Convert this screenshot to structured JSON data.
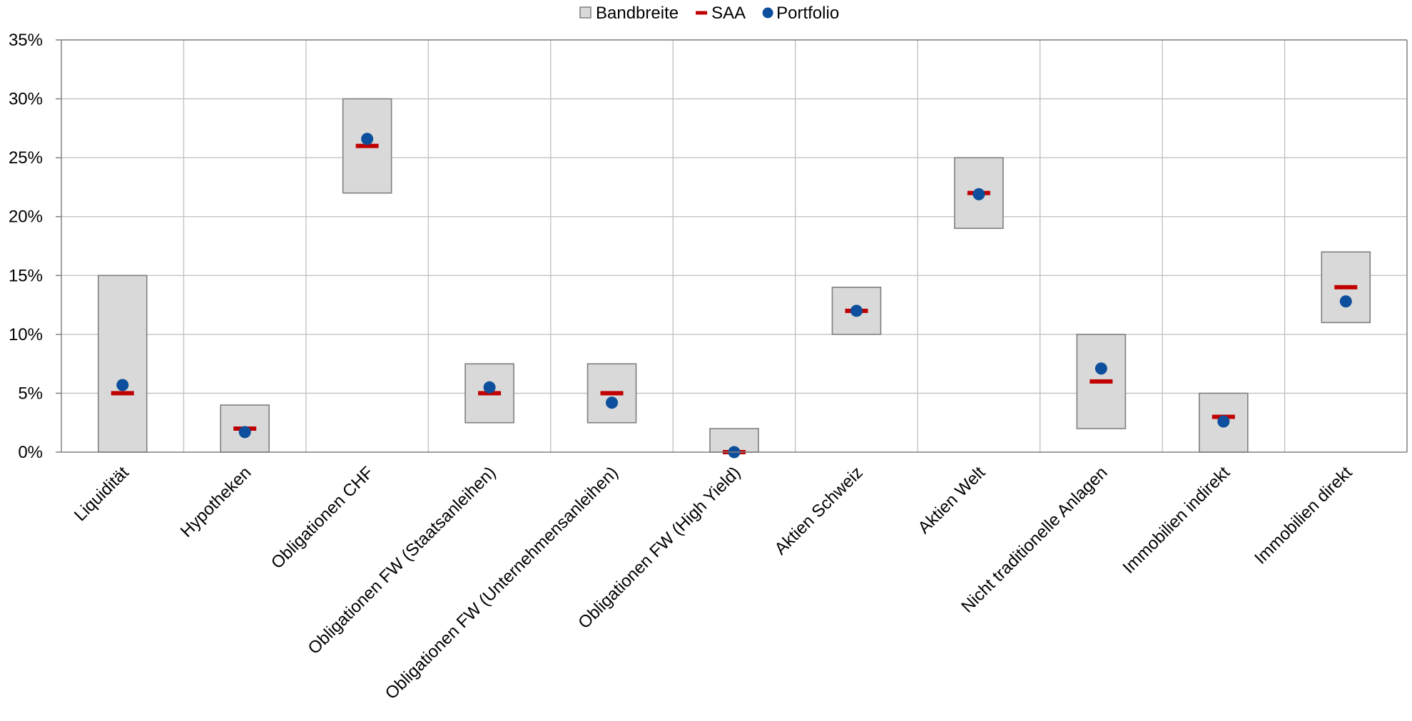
{
  "chart_data": {
    "type": "bar",
    "legend": {
      "position": "top",
      "items": [
        {
          "label": "Bandbreite",
          "marker": "box"
        },
        {
          "label": "SAA",
          "marker": "dash"
        },
        {
          "label": "Portfolio",
          "marker": "dot"
        }
      ]
    },
    "ylim": [
      0,
      35
    ],
    "yticks": [
      0,
      5,
      10,
      15,
      20,
      25,
      30,
      35
    ],
    "ytick_labels": [
      "0%",
      "5%",
      "10%",
      "15%",
      "20%",
      "25%",
      "30%",
      "35%"
    ],
    "grid": true,
    "categories": [
      "Liquidität",
      "Hypotheken",
      "Obligationen CHF",
      "Obligationen FW (Staatsanleihen)",
      "Obligationen FW (Unternehmensanleihen)",
      "Obligationen FW (High Yield)",
      "Aktien Schweiz",
      "Aktien Welt",
      "Nicht traditionelle Anlagen",
      "Immobilien indirekt",
      "Immobilien direkt"
    ],
    "series": [
      {
        "name": "Bandbreite",
        "kind": "range",
        "low": [
          0,
          0,
          22,
          2.5,
          2.5,
          0,
          10,
          19,
          2,
          0,
          11
        ],
        "high": [
          15,
          4,
          30,
          7.5,
          7.5,
          2,
          14,
          25,
          10,
          5,
          17
        ]
      },
      {
        "name": "SAA",
        "kind": "dash",
        "values": [
          5,
          2,
          26,
          5,
          5,
          0,
          12,
          22,
          6,
          3,
          14
        ]
      },
      {
        "name": "Portfolio",
        "kind": "dot",
        "values": [
          5.7,
          1.7,
          26.6,
          5.5,
          4.2,
          0,
          12,
          21.9,
          7.1,
          2.6,
          12.8
        ]
      }
    ],
    "colors": {
      "range_fill": "#d9d9d9",
      "range_stroke": "#7f7f7f",
      "saa": "#c00000",
      "portfolio": "#0d4f9c",
      "grid": "#bfbfbf",
      "axis": "#808080"
    }
  }
}
